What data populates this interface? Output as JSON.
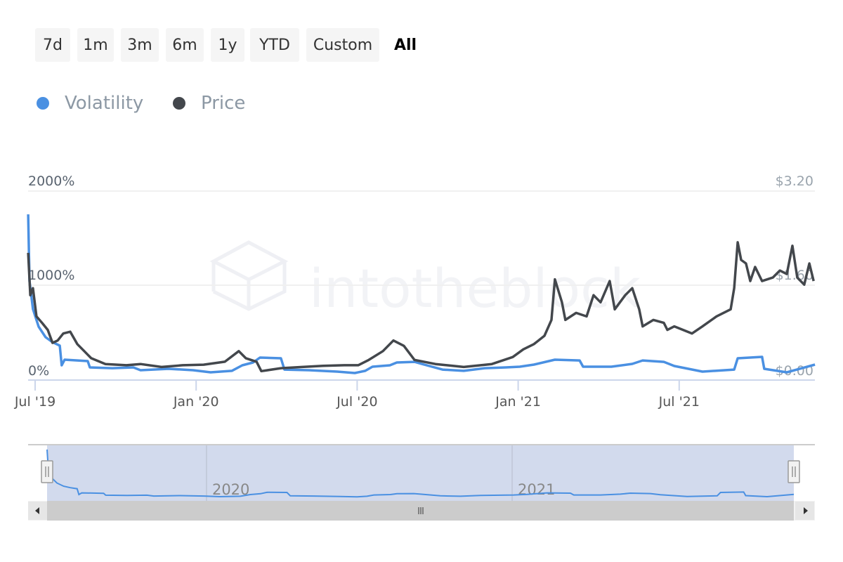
{
  "range_selector": {
    "buttons": [
      "7d",
      "1m",
      "3m",
      "6m",
      "1y",
      "YTD",
      "Custom",
      "All"
    ],
    "selected": "All"
  },
  "legend": [
    {
      "label": "Volatility",
      "color": "#4a90e2"
    },
    {
      "label": "Price",
      "color": "#43474c"
    }
  ],
  "watermark": "intotheblock",
  "navigator": {
    "labels": [
      "2020",
      "2021"
    ]
  },
  "chart_data": {
    "type": "line",
    "x_unit": "months since Jul 2019",
    "x_ticks": [
      {
        "m": 0,
        "label": "Jul '19"
      },
      {
        "m": 6,
        "label": "Jan '20"
      },
      {
        "m": 12,
        "label": "Jul '20"
      },
      {
        "m": 18,
        "label": "Jan '21"
      },
      {
        "m": 24,
        "label": "Jul '21"
      }
    ],
    "y_left": {
      "ticks": [
        "0%",
        "1000%",
        "2000%"
      ],
      "range": [
        0,
        2000
      ]
    },
    "y_right": {
      "ticks": [
        "$0.00",
        "$1.60",
        "$3.20"
      ],
      "range": [
        0,
        3.2
      ]
    },
    "xlim": [
      -0.26,
      29.06
    ],
    "series": [
      {
        "name": "Volatility",
        "axis": "left",
        "color": "#4a90e2",
        "points": [
          [
            -0.26,
            1753
          ],
          [
            -0.21,
            1045
          ],
          [
            -0.08,
            746
          ],
          [
            0.13,
            560
          ],
          [
            0.39,
            448
          ],
          [
            0.65,
            395
          ],
          [
            0.92,
            358
          ],
          [
            0.99,
            149
          ],
          [
            1.1,
            209
          ],
          [
            1.96,
            194
          ],
          [
            2.04,
            127
          ],
          [
            2.88,
            119
          ],
          [
            3.66,
            127
          ],
          [
            3.93,
            97
          ],
          [
            4.97,
            112
          ],
          [
            5.89,
            97
          ],
          [
            6.54,
            75
          ],
          [
            7.33,
            90
          ],
          [
            7.72,
            149
          ],
          [
            8.12,
            179
          ],
          [
            8.38,
            231
          ],
          [
            9.16,
            224
          ],
          [
            9.29,
            104
          ],
          [
            10.21,
            97
          ],
          [
            11.26,
            82
          ],
          [
            11.91,
            67
          ],
          [
            12.3,
            90
          ],
          [
            12.57,
            134
          ],
          [
            13.22,
            149
          ],
          [
            13.48,
            179
          ],
          [
            14.14,
            186
          ],
          [
            14.4,
            164
          ],
          [
            15.18,
            104
          ],
          [
            15.97,
            90
          ],
          [
            16.75,
            119
          ],
          [
            17.54,
            127
          ],
          [
            18.06,
            134
          ],
          [
            18.59,
            157
          ],
          [
            19.37,
            209
          ],
          [
            20.29,
            201
          ],
          [
            20.42,
            134
          ],
          [
            21.47,
            134
          ],
          [
            22.25,
            164
          ],
          [
            22.64,
            201
          ],
          [
            23.43,
            186
          ],
          [
            23.82,
            142
          ],
          [
            24.87,
            82
          ],
          [
            26.05,
            104
          ],
          [
            26.18,
            224
          ],
          [
            27.09,
            239
          ],
          [
            27.17,
            112
          ],
          [
            28.01,
            75
          ],
          [
            29.06,
            157
          ]
        ]
      },
      {
        "name": "Price",
        "axis": "right",
        "color": "#43474c",
        "points": [
          [
            -0.26,
            2.15
          ],
          [
            -0.18,
            1.43
          ],
          [
            -0.08,
            1.55
          ],
          [
            0.05,
            1.07
          ],
          [
            0.26,
            0.96
          ],
          [
            0.47,
            0.84
          ],
          [
            0.65,
            0.62
          ],
          [
            0.84,
            0.66
          ],
          [
            1.05,
            0.78
          ],
          [
            1.31,
            0.81
          ],
          [
            1.57,
            0.6
          ],
          [
            1.83,
            0.48
          ],
          [
            2.09,
            0.36
          ],
          [
            2.62,
            0.26
          ],
          [
            3.4,
            0.24
          ],
          [
            3.93,
            0.26
          ],
          [
            4.71,
            0.21
          ],
          [
            5.5,
            0.24
          ],
          [
            6.28,
            0.25
          ],
          [
            7.07,
            0.3
          ],
          [
            7.59,
            0.48
          ],
          [
            7.85,
            0.36
          ],
          [
            8.25,
            0.3
          ],
          [
            8.43,
            0.14
          ],
          [
            9.16,
            0.19
          ],
          [
            9.95,
            0.21
          ],
          [
            10.73,
            0.23
          ],
          [
            11.52,
            0.24
          ],
          [
            12.04,
            0.24
          ],
          [
            12.43,
            0.33
          ],
          [
            12.96,
            0.48
          ],
          [
            13.35,
            0.66
          ],
          [
            13.74,
            0.57
          ],
          [
            14.14,
            0.33
          ],
          [
            14.92,
            0.26
          ],
          [
            15.97,
            0.21
          ],
          [
            17.02,
            0.26
          ],
          [
            17.8,
            0.38
          ],
          [
            18.19,
            0.51
          ],
          [
            18.59,
            0.6
          ],
          [
            18.98,
            0.74
          ],
          [
            19.24,
            1.01
          ],
          [
            19.37,
            1.7
          ],
          [
            19.63,
            1.31
          ],
          [
            19.76,
            1.01
          ],
          [
            20.16,
            1.13
          ],
          [
            20.55,
            1.07
          ],
          [
            20.81,
            1.43
          ],
          [
            21.07,
            1.31
          ],
          [
            21.41,
            1.67
          ],
          [
            21.6,
            1.19
          ],
          [
            21.99,
            1.43
          ],
          [
            22.25,
            1.55
          ],
          [
            22.51,
            1.19
          ],
          [
            22.64,
            0.9
          ],
          [
            23.04,
            1.01
          ],
          [
            23.43,
            0.96
          ],
          [
            23.56,
            0.84
          ],
          [
            23.82,
            0.9
          ],
          [
            24.48,
            0.78
          ],
          [
            24.87,
            0.9
          ],
          [
            25.39,
            1.07
          ],
          [
            25.92,
            1.19
          ],
          [
            26.05,
            1.55
          ],
          [
            26.18,
            2.33
          ],
          [
            26.31,
            2.03
          ],
          [
            26.49,
            1.97
          ],
          [
            26.65,
            1.67
          ],
          [
            26.83,
            1.91
          ],
          [
            27.09,
            1.67
          ],
          [
            27.49,
            1.73
          ],
          [
            27.75,
            1.85
          ],
          [
            28.01,
            1.79
          ],
          [
            28.22,
            2.27
          ],
          [
            28.4,
            1.73
          ],
          [
            28.66,
            1.61
          ],
          [
            28.85,
            1.97
          ],
          [
            29.01,
            1.67
          ]
        ]
      }
    ]
  }
}
